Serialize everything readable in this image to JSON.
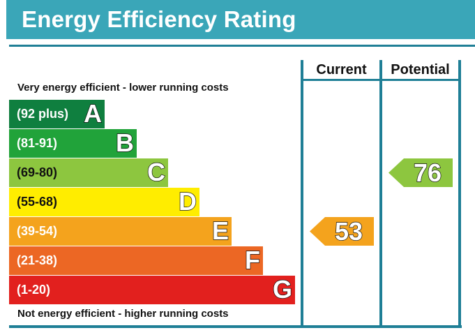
{
  "header": {
    "title": "Energy Efficiency Rating",
    "color": "#3aa6b8"
  },
  "frame_color": "#1f7f96",
  "columns": {
    "current": "Current",
    "potential": "Potential"
  },
  "captions": {
    "top": "Very energy efficient - lower running costs",
    "bottom": "Not energy efficient - higher running costs"
  },
  "chart_data": {
    "type": "bar",
    "title": "Energy Efficiency Rating",
    "bands": [
      {
        "range": "(92 plus)",
        "letter": "A",
        "min": 92,
        "max": 100,
        "color": "#0f7f3f"
      },
      {
        "range": "(81-91)",
        "letter": "B",
        "min": 81,
        "max": 91,
        "color": "#21a33a"
      },
      {
        "range": "(69-80)",
        "letter": "C",
        "min": 69,
        "max": 80,
        "color": "#8dc63f"
      },
      {
        "range": "(55-68)",
        "letter": "D",
        "min": 55,
        "max": 68,
        "color": "#ffed00"
      },
      {
        "range": "(39-54)",
        "letter": "E",
        "min": 39,
        "max": 54,
        "color": "#f4a31d"
      },
      {
        "range": "(21-38)",
        "letter": "F",
        "min": 21,
        "max": 38,
        "color": "#ec6724"
      },
      {
        "range": "(1-20)",
        "letter": "G",
        "min": 1,
        "max": 20,
        "color": "#e2201e"
      }
    ],
    "current": {
      "label": "Current",
      "value": "53",
      "band": "E",
      "color": "#f4a31d"
    },
    "potential": {
      "label": "Potential",
      "value": "76",
      "band": "C",
      "color": "#8dc63f"
    }
  }
}
